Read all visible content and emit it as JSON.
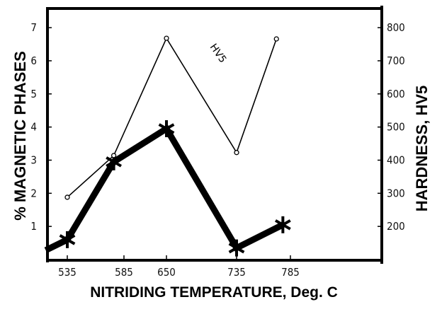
{
  "chart_data": {
    "type": "line",
    "title": "",
    "xlabel": "NITRIDING TEMPERATURE, Deg. C",
    "ylabel_left": "% MAGNETIC PHASES",
    "ylabel_right": "HARDNESS, HV5",
    "x_ticks": [
      535,
      585,
      650,
      735,
      785
    ],
    "y_left_ticks": [
      1,
      2,
      3,
      4,
      5,
      6,
      7
    ],
    "y_right_ticks": [
      200,
      300,
      400,
      500,
      600,
      700,
      800
    ],
    "ylim_left": [
      0,
      7.6
    ],
    "ylim_right": [
      100,
      860
    ],
    "grid": false,
    "series": [
      {
        "axis": "left",
        "style": "thick line with star markers",
        "color": "#000000",
        "x": [
          516,
          535,
          576,
          650,
          735,
          778
        ],
        "y": [
          0.28,
          0.6,
          2.95,
          3.95,
          0.35,
          1.05
        ]
      },
      {
        "name": "HV5",
        "axis": "right",
        "style": "thin line with open circle markers",
        "color": "#000000",
        "x": [
          535,
          576,
          650,
          735,
          772
        ],
        "y": [
          288,
          414,
          768,
          423,
          766
        ]
      }
    ],
    "annotations": [
      "HV5"
    ]
  }
}
